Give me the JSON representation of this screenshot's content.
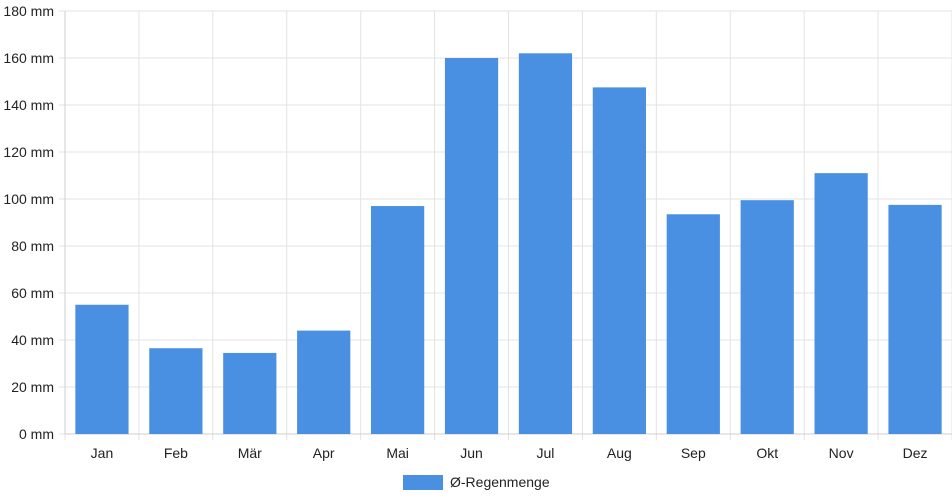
{
  "chart_data": {
    "type": "bar",
    "categories": [
      "Jan",
      "Feb",
      "Mär",
      "Apr",
      "Mai",
      "Jun",
      "Jul",
      "Aug",
      "Sep",
      "Okt",
      "Nov",
      "Dez"
    ],
    "series": [
      {
        "name": "Ø-Regenmenge",
        "values": [
          55,
          36.5,
          34.5,
          44,
          97,
          160,
          162,
          147.5,
          93.5,
          99.5,
          111,
          97.5
        ],
        "color": "#4a90e2"
      }
    ],
    "y_unit": "mm",
    "ylim": [
      0,
      180
    ],
    "y_ticks": [
      0,
      20,
      40,
      60,
      80,
      100,
      120,
      140,
      160,
      180
    ],
    "y_tick_labels": [
      "0 mm",
      "20 mm",
      "40 mm",
      "60 mm",
      "80 mm",
      "100 mm",
      "120 mm",
      "140 mm",
      "160 mm",
      "180 mm"
    ],
    "grid": true,
    "legend_position": "bottom-center"
  }
}
